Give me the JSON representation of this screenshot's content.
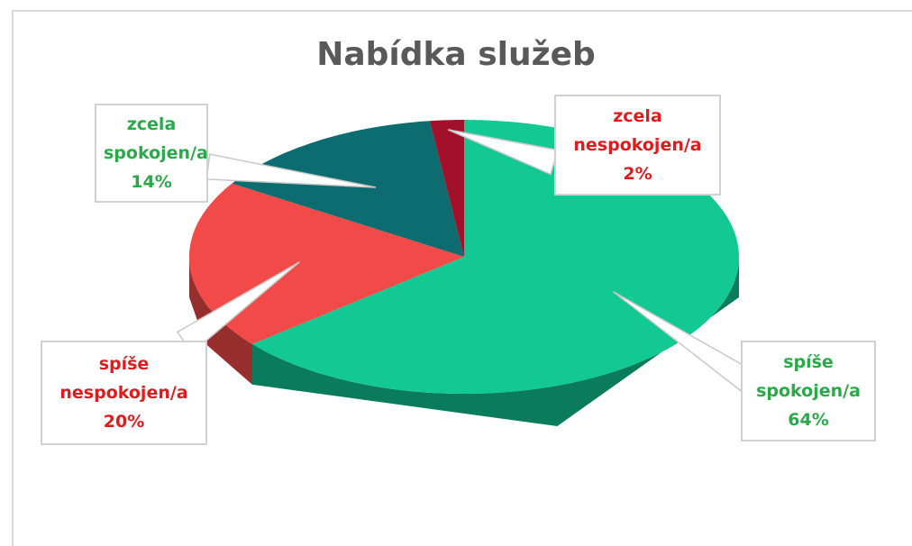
{
  "chart_data": {
    "type": "pie",
    "title": "Nabídka služeb",
    "categories": [
      "spíše spokojen/a",
      "spíše nespokojen/a",
      "zcela spokojen/a",
      "zcela nespokojen/a"
    ],
    "values": [
      64,
      20,
      14,
      2
    ],
    "value_labels": [
      "64%",
      "20%",
      "14%",
      "2%"
    ],
    "colors": [
      "#12c893",
      "#f24a48",
      "#0d6c70",
      "#a3102a"
    ],
    "label_colors": [
      "#2aa84a",
      "#e01b1b",
      "#2aa84a",
      "#e01b1b"
    ]
  }
}
